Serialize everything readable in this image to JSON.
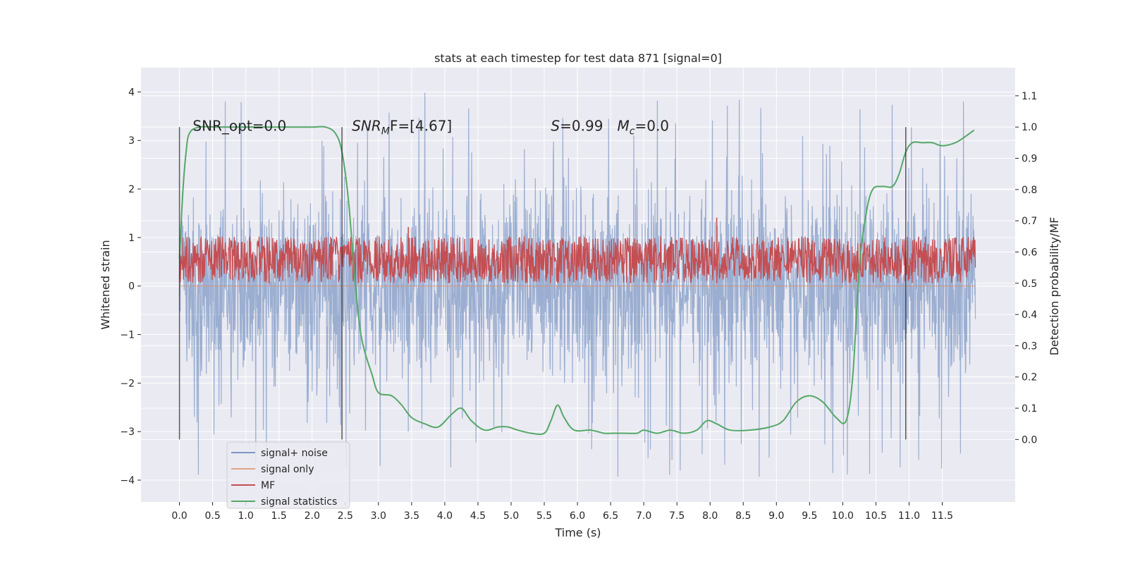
{
  "chart_data": {
    "type": "line",
    "title": "stats at each timestep for test data 871 [signal=0]",
    "xlabel": "Time (s)",
    "ylabel": "Whitened strain",
    "y2label": "Detection probability/MF",
    "xlim": [
      -0.58,
      12.6
    ],
    "ylim": [
      -4.45,
      4.5
    ],
    "y2lim": [
      -0.2,
      1.19
    ],
    "xticks": [
      "0.0",
      "0.5",
      "1.0",
      "1.5",
      "2.0",
      "2.5",
      "3.0",
      "3.5",
      "4.0",
      "4.5",
      "5.0",
      "5.5",
      "6.0",
      "6.5",
      "7.0",
      "7.5",
      "8.0",
      "8.5",
      "9.0",
      "9.5",
      "10.0",
      "10.5",
      "11.0",
      "11.5"
    ],
    "yticks": [
      "4",
      "3",
      "2",
      "1",
      "0",
      "−1",
      "−2",
      "−3",
      "−4"
    ],
    "y2ticks": [
      "1.1",
      "1.0",
      "0.9",
      "0.8",
      "0.7",
      "0.6",
      "0.5",
      "0.4",
      "0.3",
      "0.2",
      "0.1",
      "0.0"
    ],
    "grid": true,
    "legend_position": "lower-left",
    "background": "#eaeaf2",
    "series": [
      {
        "name": "signal+ noise",
        "color": "#4c72b0",
        "opacity": 0.5,
        "axis": "left",
        "x_range": [
          0,
          12.0
        ],
        "envelope": {
          "typical": [
            -2.2,
            2.3
          ],
          "extremes": [
            -4.05,
            4.1
          ]
        }
      },
      {
        "name": "signal only",
        "color": "#dd8452",
        "opacity": 0.5,
        "axis": "left",
        "x_range": [
          0,
          12.0
        ],
        "value": 0
      },
      {
        "name": "MF",
        "color": "#c44e52",
        "axis": "right",
        "x_range": [
          0,
          12.0
        ],
        "band": [
          0.5,
          0.65
        ],
        "spikes": [
          [
            3.45,
            0.68
          ],
          [
            8.1,
            0.71
          ],
          [
            1.35,
            0.63
          ],
          [
            4.95,
            0.64
          ],
          [
            5.7,
            0.63
          ],
          [
            6.8,
            0.62
          ],
          [
            11.35,
            0.62
          ]
        ]
      },
      {
        "name": "signal statistics",
        "color": "#55a868",
        "axis": "right",
        "x": [
          0.0,
          0.05,
          0.1,
          0.15,
          0.3,
          0.6,
          1.0,
          1.5,
          2.0,
          2.2,
          2.35,
          2.45,
          2.55,
          2.65,
          2.75,
          2.9,
          3.0,
          3.2,
          3.35,
          3.5,
          3.7,
          3.9,
          4.1,
          4.25,
          4.4,
          4.6,
          4.8,
          4.95,
          5.1,
          5.3,
          5.5,
          5.6,
          5.7,
          5.8,
          5.95,
          6.2,
          6.4,
          6.55,
          6.7,
          6.9,
          7.0,
          7.2,
          7.4,
          7.6,
          7.8,
          7.95,
          8.1,
          8.3,
          8.6,
          8.9,
          9.1,
          9.3,
          9.5,
          9.7,
          9.9,
          10.05,
          10.15,
          10.25,
          10.35,
          10.45,
          10.6,
          10.75,
          10.85,
          10.95,
          11.05,
          11.2,
          11.35,
          11.5,
          11.7,
          11.85,
          11.98
        ],
        "y": [
          0.58,
          0.79,
          0.92,
          0.98,
          1.0,
          1.0,
          1.0,
          1.0,
          1.0,
          1.0,
          0.98,
          0.92,
          0.76,
          0.5,
          0.32,
          0.21,
          0.15,
          0.14,
          0.11,
          0.07,
          0.05,
          0.04,
          0.08,
          0.1,
          0.06,
          0.03,
          0.04,
          0.04,
          0.03,
          0.02,
          0.02,
          0.06,
          0.11,
          0.07,
          0.03,
          0.03,
          0.02,
          0.02,
          0.02,
          0.02,
          0.03,
          0.02,
          0.03,
          0.02,
          0.03,
          0.06,
          0.05,
          0.03,
          0.03,
          0.04,
          0.06,
          0.12,
          0.14,
          0.12,
          0.07,
          0.06,
          0.2,
          0.55,
          0.72,
          0.8,
          0.81,
          0.81,
          0.85,
          0.92,
          0.95,
          0.95,
          0.95,
          0.94,
          0.95,
          0.97,
          0.99
        ]
      }
    ],
    "vlines": [
      0.0,
      2.45,
      10.95
    ],
    "annotations": [
      {
        "text": "SNR_opt=0.0",
        "x": 0.2,
        "y": 3.2,
        "italic": false
      },
      {
        "text": "SNR",
        "sub": "M",
        "rest": "F=[4.67]",
        "x": 2.6,
        "y": 3.2
      },
      {
        "text": "S",
        "rest": "=0.99",
        "x": 5.6,
        "y": 3.2
      },
      {
        "text": "M",
        "sub": "c",
        "rest": "=0.0",
        "x": 6.6,
        "y": 3.2
      }
    ]
  }
}
